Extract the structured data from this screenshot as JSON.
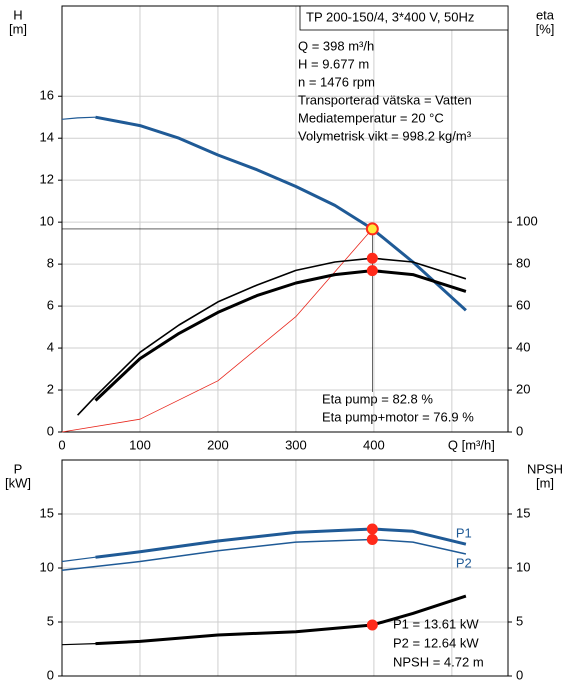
{
  "chart_data": [
    {
      "type": "line",
      "title": "TP 200-150/4, 3*400 V, 50Hz",
      "info": [
        "Q = 398 m³/h",
        "H = 9.677 m",
        "n = 1476 rpm",
        "Transporterad vätska = Vatten",
        "Mediatemperatur = 20 °C",
        "Volymetrisk vikt = 998.2 kg/m³"
      ],
      "annotations": [
        "Eta pump = 82.8 %",
        "Eta pump+motor = 76.9 %"
      ],
      "y_label": [
        "H",
        "[m]"
      ],
      "y2_label": [
        "eta",
        "[%]"
      ],
      "xlim": [
        0,
        572
      ],
      "xticks": [
        0,
        100,
        200,
        300,
        400,
        {
          "value": 500,
          "label": "Q [m³/h]"
        }
      ],
      "xtick_labels": true,
      "ylim": [
        0,
        20.3
      ],
      "yticks": [
        0,
        2,
        4,
        6,
        8,
        10,
        12,
        14,
        16
      ],
      "y2lim": [
        0,
        203
      ],
      "y2ticks": [
        0,
        20,
        40,
        60,
        80,
        100
      ],
      "grid": true,
      "series": [
        {
          "color": "#1f5a96",
          "width": 1.2,
          "x": [
            0,
            20,
            43
          ],
          "values": [
            14.9,
            14.97,
            15.0
          ]
        },
        {
          "color": "#1f5a96",
          "width": 3,
          "x": [
            43,
            100,
            150,
            200,
            250,
            300,
            350,
            398,
            450,
            518
          ],
          "values": [
            15.0,
            14.6,
            14.0,
            13.2,
            12.5,
            11.7,
            10.8,
            9.677,
            8.1,
            5.8
          ]
        },
        {
          "color": "#e8261c",
          "width": 0.8,
          "x": [
            0,
            100,
            200,
            300,
            398
          ],
          "values": [
            0,
            0.61,
            2.44,
            5.5,
            9.677
          ]
        },
        {
          "color": "#000000",
          "width": 1.6,
          "axis": "y2",
          "x": [
            20,
            43,
            100,
            150,
            200,
            250,
            300,
            350,
            398,
            450,
            518
          ],
          "values": [
            8,
            17,
            38,
            51,
            62,
            70,
            77,
            81,
            82.8,
            81,
            73
          ]
        },
        {
          "color": "#000000",
          "width": 3,
          "axis": "y2",
          "x": [
            43,
            100,
            150,
            200,
            250,
            300,
            350,
            398,
            450,
            518
          ],
          "values": [
            15,
            35,
            47,
            57,
            65,
            71,
            75,
            76.9,
            75,
            67
          ]
        }
      ],
      "operating_point": {
        "x": 398,
        "y": [
          9.677
        ],
        "y2": [
          82.8,
          76.9
        ],
        "highlight": "#ffe93b",
        "color": "#ff2a1a"
      }
    },
    {
      "type": "line",
      "annotations": [
        "P1 = 13.61 kW",
        "P2 = 12.64 kW",
        "NPSH = 4.72 m"
      ],
      "y_label": [
        "P",
        "[kW]"
      ],
      "y2_label": [
        "NPSH",
        "[m]"
      ],
      "xlim": [
        0,
        572
      ],
      "xticks": [
        0,
        100,
        200,
        300,
        400,
        500
      ],
      "xtick_labels": false,
      "ylim": [
        0,
        20
      ],
      "yticks": [
        0,
        5,
        10,
        15
      ],
      "y2lim": [
        0,
        20
      ],
      "y2ticks": [
        0,
        5,
        10,
        15
      ],
      "grid": true,
      "series": [
        {
          "color": "#1f5a96",
          "width": 1.2,
          "x": [
            0,
            43
          ],
          "values": [
            10.6,
            11.0
          ]
        },
        {
          "name": "P1",
          "color": "#1f5a96",
          "width": 3,
          "x": [
            43,
            100,
            200,
            300,
            398,
            450,
            518
          ],
          "values": [
            11.0,
            11.5,
            12.5,
            13.3,
            13.61,
            13.4,
            12.2
          ]
        },
        {
          "name": "P2",
          "color": "#1f5a96",
          "width": 1.5,
          "x": [
            0,
            100,
            200,
            300,
            398,
            450,
            518
          ],
          "values": [
            9.8,
            10.6,
            11.6,
            12.4,
            12.64,
            12.4,
            11.3
          ]
        },
        {
          "color": "#000000",
          "width": 1.2,
          "axis": "y2",
          "x": [
            0,
            43
          ],
          "values": [
            2.9,
            3.0
          ]
        },
        {
          "color": "#000000",
          "width": 3,
          "axis": "y2",
          "x": [
            43,
            100,
            200,
            300,
            398,
            450,
            518
          ],
          "values": [
            3.0,
            3.2,
            3.8,
            4.1,
            4.72,
            5.8,
            7.4
          ]
        }
      ],
      "operating_point": {
        "x": 398,
        "y": [
          13.61,
          12.64
        ],
        "y2": [
          4.72
        ],
        "color": "#ff2a1a"
      }
    }
  ]
}
